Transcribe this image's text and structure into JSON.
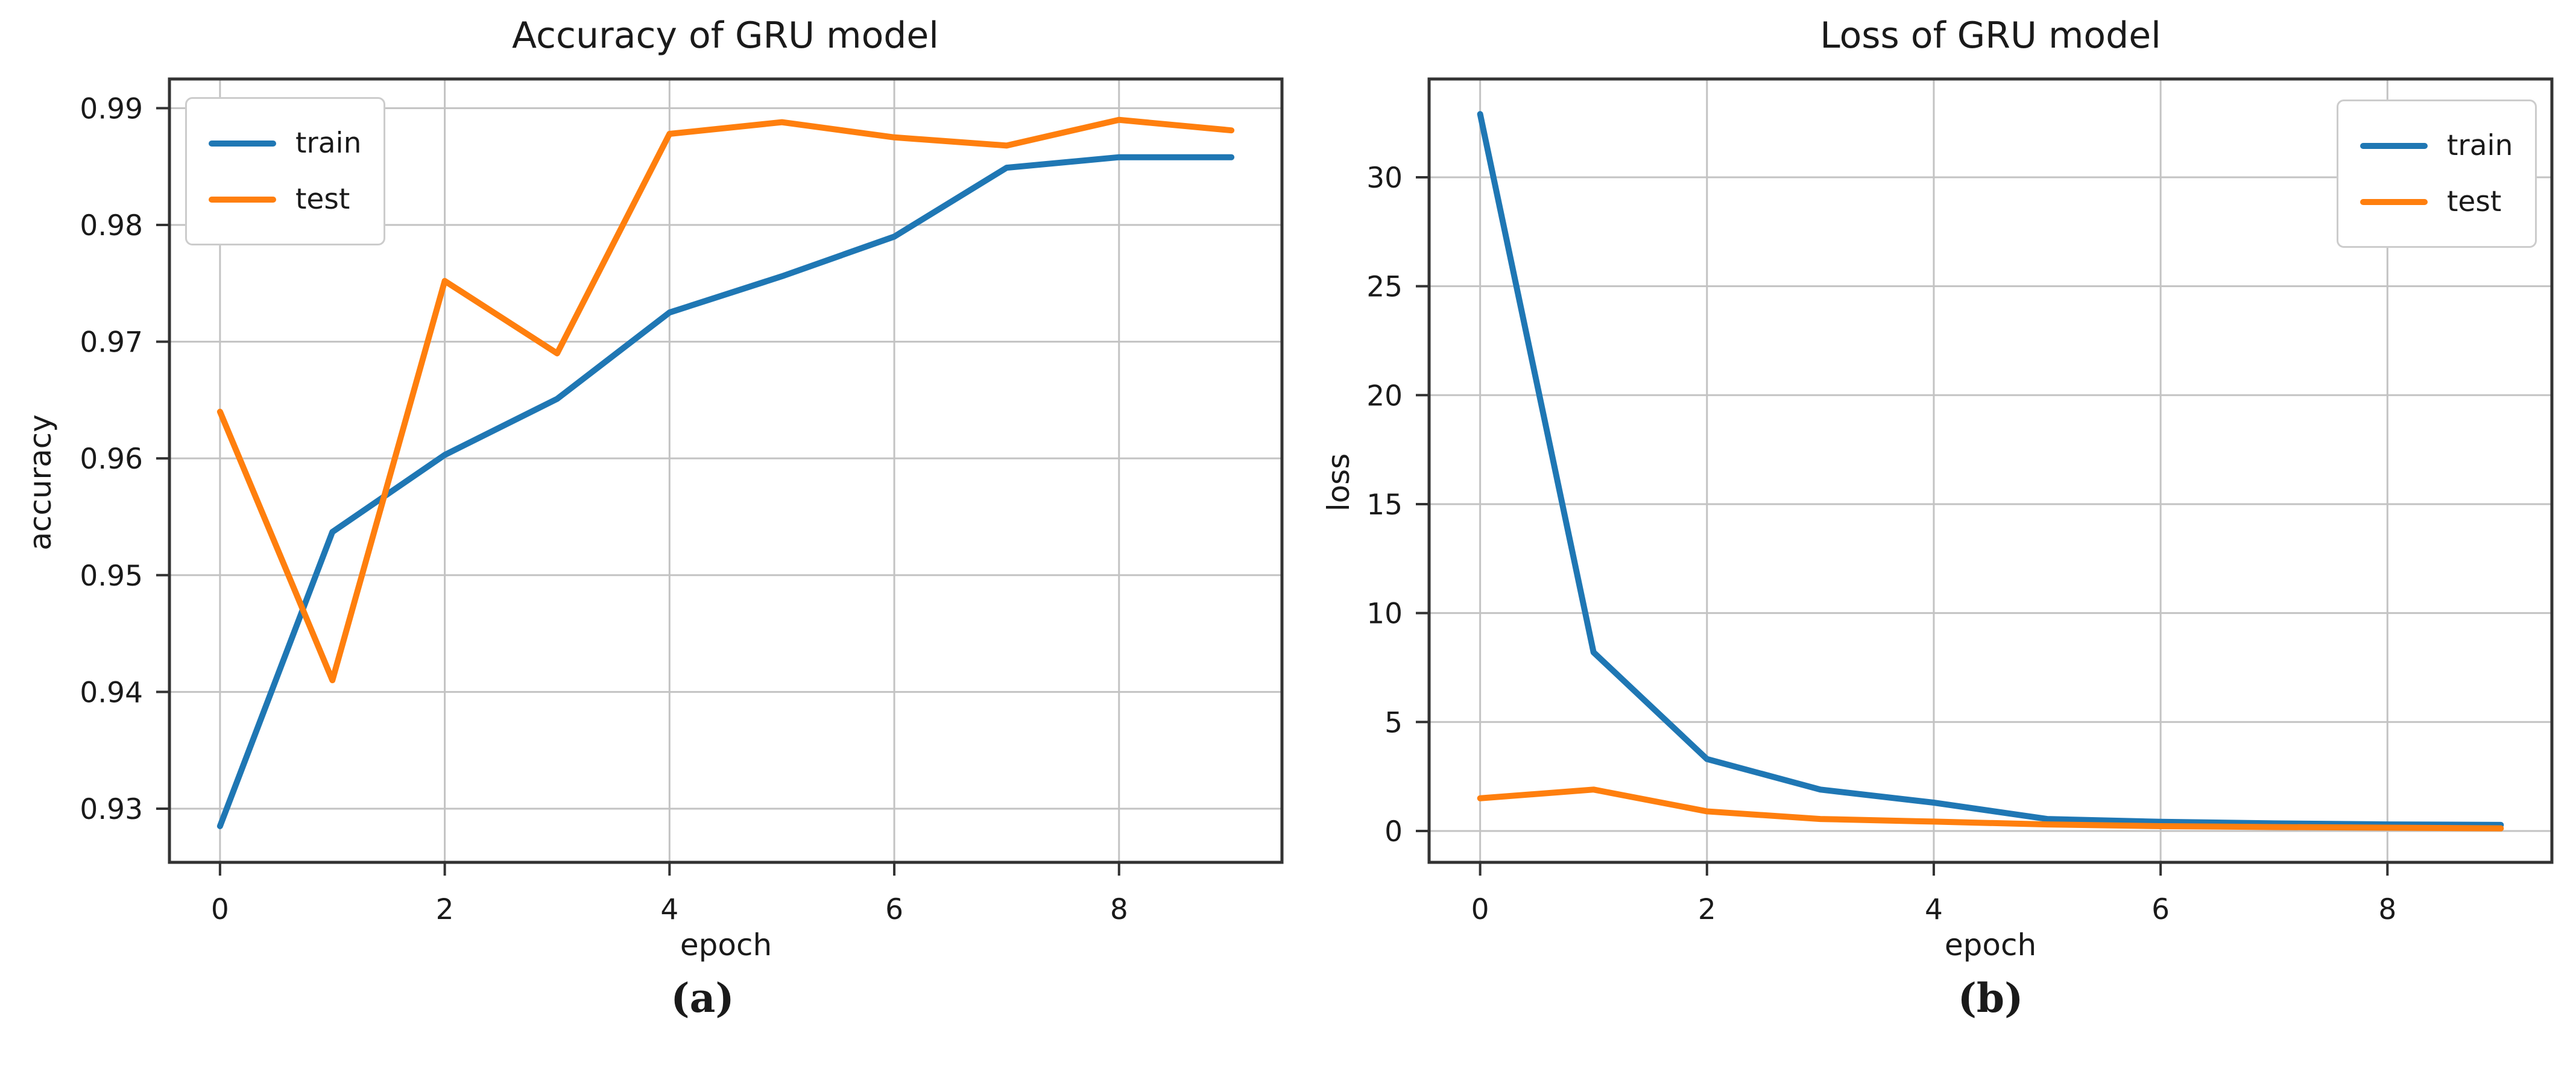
{
  "figure": {
    "background": "#ffffff",
    "grid_color": "#c3c3c3",
    "spine_color": "#333333"
  },
  "chart_data": [
    {
      "id": "accuracy",
      "type": "line",
      "title": "Accuracy of GRU model",
      "xlabel": "epoch",
      "ylabel": "accuracy",
      "caption": "(a)",
      "legend": {
        "position": "upper-left",
        "entries": [
          "train",
          "test"
        ]
      },
      "x": [
        0,
        1,
        2,
        3,
        4,
        5,
        6,
        7,
        8,
        9
      ],
      "series": [
        {
          "name": "train",
          "color": "#1f77b4",
          "values": [
            0.9285,
            0.9537,
            0.9603,
            0.9651,
            0.9725,
            0.9756,
            0.979,
            0.9849,
            0.9858,
            0.9858
          ]
        },
        {
          "name": "test",
          "color": "#ff7f0e",
          "values": [
            0.964,
            0.941,
            0.9752,
            0.969,
            0.9878,
            0.9888,
            0.9875,
            0.9868,
            0.989,
            0.9881
          ]
        }
      ],
      "xlim": [
        -0.45,
        9.45
      ],
      "ylim": [
        0.9254,
        0.9925
      ],
      "xticks": [
        0,
        2,
        4,
        6,
        8
      ],
      "xtick_labels": [
        "0",
        "2",
        "4",
        "6",
        "8"
      ],
      "yticks": [
        0.93,
        0.94,
        0.95,
        0.96,
        0.97,
        0.98,
        0.99
      ],
      "ytick_labels": [
        "0.93",
        "0.94",
        "0.95",
        "0.96",
        "0.97",
        "0.98",
        "0.99"
      ],
      "grid": true
    },
    {
      "id": "loss",
      "type": "line",
      "title": "Loss of GRU model",
      "xlabel": "epoch",
      "ylabel": "loss",
      "caption": "(b)",
      "legend": {
        "position": "upper-right",
        "entries": [
          "train",
          "test"
        ]
      },
      "x": [
        0,
        1,
        2,
        3,
        4,
        5,
        6,
        7,
        8,
        9
      ],
      "series": [
        {
          "name": "train",
          "color": "#1f77b4",
          "values": [
            32.9,
            8.2,
            3.3,
            1.9,
            1.3,
            0.55,
            0.42,
            0.35,
            0.3,
            0.28
          ]
        },
        {
          "name": "test",
          "color": "#ff7f0e",
          "values": [
            1.5,
            1.9,
            0.9,
            0.55,
            0.43,
            0.3,
            0.22,
            0.18,
            0.15,
            0.12
          ]
        }
      ],
      "xlim": [
        -0.45,
        9.45
      ],
      "ylim": [
        -1.44,
        34.51
      ],
      "xticks": [
        0,
        2,
        4,
        6,
        8
      ],
      "xtick_labels": [
        "0",
        "2",
        "4",
        "6",
        "8"
      ],
      "yticks": [
        0,
        5,
        10,
        15,
        20,
        25,
        30
      ],
      "ytick_labels": [
        "0",
        "5",
        "10",
        "15",
        "20",
        "25",
        "30"
      ],
      "grid": true
    }
  ]
}
